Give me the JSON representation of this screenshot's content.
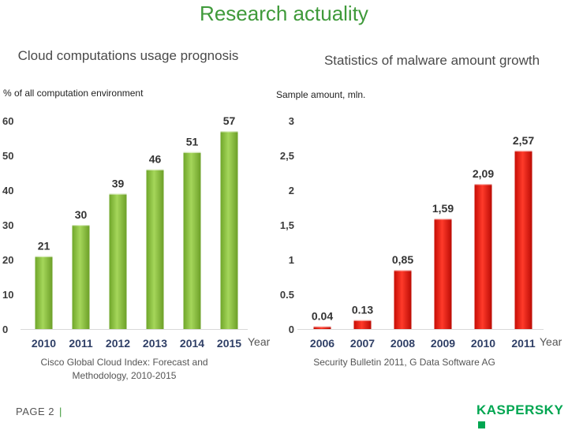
{
  "page": {
    "title": "Research actuality",
    "page_label": "PAGE 2",
    "page_separator": "|",
    "logo_text": "KASPERSKY"
  },
  "colors": {
    "title_green": "#3f9a3a",
    "bar_green": "#8dc63f",
    "bar_red": "#e8160c",
    "axis_number_green": "#3b3b3b",
    "logo_green": "#00a651"
  },
  "chart_data": [
    {
      "type": "bar",
      "title": "Cloud computations usage prognosis",
      "ylabel": "% of all computation environment",
      "xlabel": "Year",
      "categories": [
        "2010",
        "2011",
        "2012",
        "2013",
        "2014",
        "2015"
      ],
      "values": [
        21,
        30,
        39,
        46,
        51,
        57
      ],
      "data_labels": [
        "21",
        "30",
        "39",
        "46",
        "51",
        "57"
      ],
      "ylim": [
        0,
        60
      ],
      "yticks": [
        "0",
        "10",
        "20",
        "30",
        "40",
        "50",
        "60"
      ],
      "color": "#8dc63f",
      "grid": false,
      "source": "Cisco Global Cloud Index: Forecast and Methodology, 2010-2015"
    },
    {
      "type": "bar",
      "title": "Statistics of malware amount growth",
      "ylabel": "Sample amount, mln.",
      "xlabel": "Year",
      "categories": [
        "2006",
        "2007",
        "2008",
        "2009",
        "2010",
        "2011"
      ],
      "values": [
        0.04,
        0.13,
        0.85,
        1.59,
        2.09,
        2.57
      ],
      "data_labels": [
        "0.04",
        "0.13",
        "0,85",
        "1,59",
        "2,09",
        "2,57"
      ],
      "ylim": [
        0,
        3
      ],
      "yticks": [
        "0",
        "0.5",
        "1",
        "1,5",
        "2",
        "2,5",
        "3"
      ],
      "color": "#e8160c",
      "grid": false,
      "source": "Security Bulletin 2011, G Data Software AG"
    }
  ]
}
